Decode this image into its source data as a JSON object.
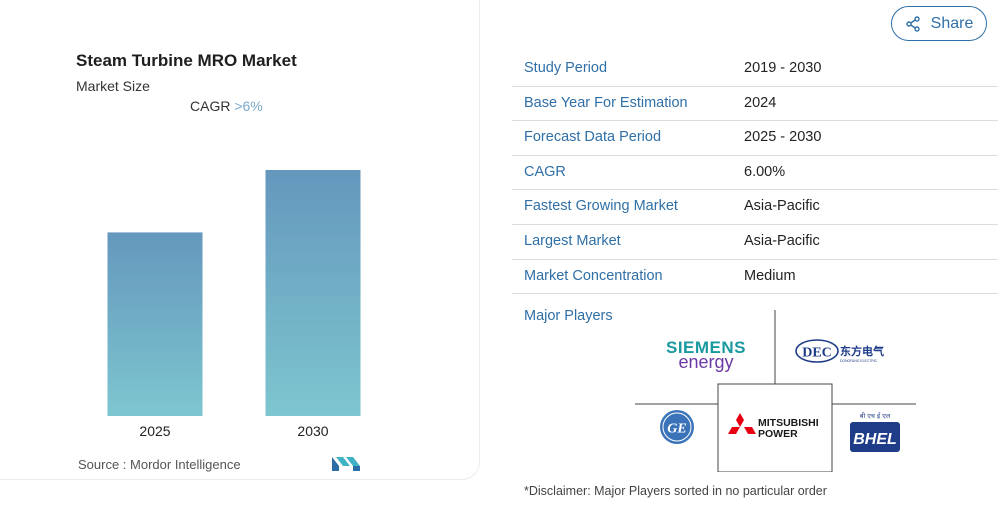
{
  "card": {
    "title": "Steam Turbine MRO Market",
    "subtitle": "Market Size",
    "cagr_label": "CAGR",
    "cagr_value": ">6%",
    "source": "Source : Mordor Intelligence"
  },
  "chart_data": {
    "type": "bar",
    "categories": [
      "2025",
      "2030"
    ],
    "values": [
      1.0,
      1.34
    ],
    "value_scale": "relative (bars unlabeled)",
    "title": "",
    "xlabel": "",
    "ylabel": "",
    "grid": false,
    "bar_gradient": [
      "#6597bd",
      "#7dc6cf"
    ]
  },
  "share": {
    "label": "Share",
    "icon": "share-icon"
  },
  "table": [
    {
      "key": "Study Period",
      "value": "2019 - 2030"
    },
    {
      "key": "Base Year For Estimation",
      "value": "2024"
    },
    {
      "key": "Forecast Data Period",
      "value": "2025 - 2030"
    },
    {
      "key": "CAGR",
      "value": "6.00%"
    },
    {
      "key": "Fastest Growing Market",
      "value": "Asia-Pacific"
    },
    {
      "key": "Largest Market",
      "value": "Asia-Pacific"
    },
    {
      "key": "Market Concentration",
      "value": "Medium"
    }
  ],
  "major_players": {
    "label": "Major Players",
    "logos": [
      {
        "name": "siemens-energy-logo",
        "line1": "SIEMENS",
        "line2": "energy"
      },
      {
        "name": "dec-logo",
        "text": "DEC",
        "cn": "东方电气",
        "tag": "DONGFANG ELECTRIC"
      },
      {
        "name": "ge-logo",
        "text": "GE"
      },
      {
        "name": "mitsubishi-power-logo",
        "line1": "MITSUBISHI",
        "line2": "POWER"
      },
      {
        "name": "bhel-logo",
        "text": "BHEL",
        "hindi": "बी एच ई एल"
      }
    ]
  },
  "disclaimer": "*Disclaimer: Major Players sorted in no particular order",
  "colors": {
    "accent": "#2f6fa6",
    "border": "#dcdcdc"
  }
}
